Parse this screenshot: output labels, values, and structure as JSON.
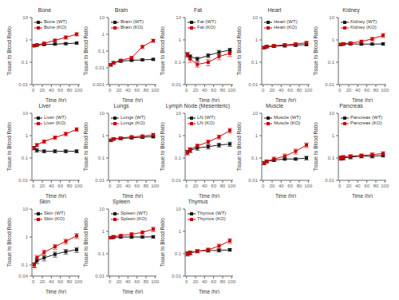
{
  "chart_data": [
    {
      "type": "line",
      "title": "Bone",
      "xlabel": "Time (hr)",
      "ylabel": "Tissue to Blood Ratio",
      "log": "y",
      "grid": false,
      "legend": "upper left",
      "x": [
        2,
        8,
        24,
        48,
        72,
        96
      ],
      "xlim": [
        -3,
        103
      ],
      "xticks": [
        0,
        20,
        40,
        60,
        80,
        100
      ],
      "ylim": [
        0.01,
        10
      ],
      "yticks": [
        0.01,
        0.1,
        1,
        10
      ],
      "series": [
        {
          "name": "Bone (WT)",
          "color": "#1a1a1a",
          "marker": "square",
          "line_style": "solid",
          "values": [
            0.55,
            0.58,
            0.62,
            0.65,
            0.68,
            0.72
          ],
          "error": [
            0.04,
            0.05,
            0.05,
            0.06,
            0.07,
            0.07
          ]
        },
        {
          "name": "Bone (KO)",
          "color": "#cc0000",
          "marker": "square",
          "line_style": "solid",
          "values": [
            0.55,
            0.6,
            0.7,
            0.95,
            1.3,
            1.8
          ],
          "error": [
            0.05,
            0.06,
            0.09,
            0.14,
            0.22,
            0.3
          ]
        }
      ]
    },
    {
      "type": "line",
      "title": "Brain",
      "xlabel": "Time (hr)",
      "ylabel": "Tissue to Blood Ratio",
      "log": "y",
      "grid": false,
      "legend": "upper left",
      "x": [
        2,
        8,
        24,
        48,
        72,
        96
      ],
      "xlim": [
        -3,
        103
      ],
      "xticks": [
        0,
        20,
        40,
        60,
        80,
        100
      ],
      "ylim": [
        0.001,
        10
      ],
      "yticks": [
        0.001,
        0.01,
        0.1,
        1,
        10
      ],
      "series": [
        {
          "name": "Brain (WT)",
          "color": "#1a1a1a",
          "marker": "square",
          "line_style": "solid",
          "values": [
            0.015,
            0.02,
            0.025,
            0.028,
            0.03,
            0.032
          ],
          "error": [
            0.002,
            0.003,
            0.003,
            0.003,
            0.004,
            0.004
          ]
        },
        {
          "name": "Brain (KO)",
          "color": "#cc0000",
          "marker": "square",
          "line_style": "solid",
          "values": [
            0.015,
            0.02,
            0.028,
            0.04,
            0.18,
            0.42
          ],
          "error": [
            0.002,
            0.003,
            0.004,
            0.006,
            0.04,
            0.09
          ]
        }
      ]
    },
    {
      "type": "line",
      "title": "Fat",
      "xlabel": "Time (hr)",
      "ylabel": "Tissue to Blood Ratio",
      "log": "y",
      "grid": false,
      "legend": "upper left",
      "x": [
        2,
        8,
        24,
        48,
        72,
        96
      ],
      "xlim": [
        -3,
        103
      ],
      "xticks": [
        0,
        20,
        40,
        60,
        80,
        100
      ],
      "ylim": [
        0.01,
        10
      ],
      "yticks": [
        0.01,
        0.1,
        1,
        10
      ],
      "series": [
        {
          "name": "Fat (WT)",
          "color": "#1a1a1a",
          "marker": "square",
          "line_style": "solid",
          "values": [
            0.22,
            0.18,
            0.14,
            0.2,
            0.28,
            0.35
          ],
          "error": [
            0.05,
            0.04,
            0.03,
            0.04,
            0.06,
            0.07
          ]
        },
        {
          "name": "Fat (KO)",
          "color": "#cc0000",
          "marker": "square",
          "line_style": "solid",
          "values": [
            0.22,
            0.14,
            0.08,
            0.1,
            0.18,
            0.25
          ],
          "error": [
            0.05,
            0.04,
            0.02,
            0.03,
            0.05,
            0.07
          ]
        }
      ]
    },
    {
      "type": "line",
      "title": "Heart",
      "xlabel": "Time (hr)",
      "ylabel": "Tissue to Blood Ratio",
      "log": "y",
      "grid": false,
      "legend": "upper left",
      "x": [
        2,
        8,
        24,
        48,
        72,
        96
      ],
      "xlim": [
        -3,
        103
      ],
      "xticks": [
        0,
        20,
        40,
        60,
        80,
        100
      ],
      "ylim": [
        0.01,
        10
      ],
      "yticks": [
        0.01,
        0.1,
        1,
        10
      ],
      "series": [
        {
          "name": "Heart (WT)",
          "color": "#1a1a1a",
          "marker": "square",
          "line_style": "solid",
          "values": [
            0.45,
            0.5,
            0.52,
            0.55,
            0.58,
            0.62
          ],
          "error": [
            0.05,
            0.06,
            0.06,
            0.07,
            0.07,
            0.08
          ]
        },
        {
          "name": "Heart (KO)",
          "color": "#cc0000",
          "marker": "square",
          "line_style": "solid",
          "values": [
            0.45,
            0.5,
            0.55,
            0.6,
            0.65,
            0.75
          ],
          "error": [
            0.05,
            0.06,
            0.07,
            0.08,
            0.09,
            0.1
          ]
        }
      ]
    },
    {
      "type": "line",
      "title": "Kidney",
      "xlabel": "Time (hr)",
      "ylabel": "Tissue to Blood Ratio",
      "log": "y",
      "grid": false,
      "legend": "upper left",
      "x": [
        2,
        8,
        24,
        48,
        72,
        96
      ],
      "xlim": [
        -3,
        103
      ],
      "xticks": [
        0,
        20,
        40,
        60,
        80,
        100
      ],
      "ylim": [
        0.01,
        10
      ],
      "yticks": [
        0.01,
        0.1,
        1,
        10
      ],
      "series": [
        {
          "name": "Kidney (WT)",
          "color": "#1a1a1a",
          "marker": "square",
          "line_style": "solid",
          "values": [
            0.62,
            0.65,
            0.66,
            0.65,
            0.65,
            0.66
          ],
          "error": [
            0.06,
            0.07,
            0.07,
            0.07,
            0.07,
            0.07
          ]
        },
        {
          "name": "Kidney (KO)",
          "color": "#cc0000",
          "marker": "square",
          "line_style": "solid",
          "values": [
            0.62,
            0.67,
            0.72,
            0.85,
            1.1,
            1.6
          ],
          "error": [
            0.07,
            0.08,
            0.1,
            0.13,
            0.2,
            0.32
          ]
        }
      ]
    },
    {
      "type": "line",
      "title": "Liver",
      "xlabel": "Time (hr)",
      "ylabel": "Tissue to Blood Ratio",
      "log": "y",
      "grid": false,
      "legend": "upper left",
      "x": [
        2,
        8,
        24,
        48,
        72,
        96
      ],
      "xlim": [
        -3,
        103
      ],
      "xticks": [
        0,
        20,
        40,
        60,
        80,
        100
      ],
      "ylim": [
        0.01,
        10
      ],
      "yticks": [
        0.01,
        0.1,
        1,
        10
      ],
      "series": [
        {
          "name": "Liver (WT)",
          "color": "#1a1a1a",
          "marker": "square",
          "line_style": "solid",
          "values": [
            0.28,
            0.22,
            0.2,
            0.2,
            0.2,
            0.2
          ],
          "error": [
            0.04,
            0.04,
            0.03,
            0.03,
            0.03,
            0.03
          ]
        },
        {
          "name": "Liver (KO)",
          "color": "#cc0000",
          "marker": "square",
          "line_style": "solid",
          "values": [
            0.28,
            0.38,
            0.55,
            0.82,
            1.2,
            1.9
          ],
          "error": [
            0.05,
            0.06,
            0.09,
            0.14,
            0.22,
            0.35
          ]
        }
      ]
    },
    {
      "type": "line",
      "title": "Lungs",
      "xlabel": "Time (hr)",
      "ylabel": "Tissue to Blood Ratio",
      "log": "y",
      "grid": false,
      "legend": "upper left",
      "x": [
        2,
        8,
        24,
        48,
        72,
        96
      ],
      "xlim": [
        -3,
        103
      ],
      "xticks": [
        0,
        20,
        40,
        60,
        80,
        100
      ],
      "ylim": [
        0.01,
        10
      ],
      "yticks": [
        0.01,
        0.1,
        1,
        10
      ],
      "series": [
        {
          "name": "Lungs (WT)",
          "color": "#1a1a1a",
          "marker": "square",
          "line_style": "solid",
          "values": [
            0.62,
            0.7,
            0.75,
            0.8,
            0.85,
            0.9
          ],
          "error": [
            0.07,
            0.08,
            0.09,
            0.09,
            0.1,
            0.1
          ]
        },
        {
          "name": "Lungs (KO)",
          "color": "#cc0000",
          "marker": "square",
          "line_style": "solid",
          "values": [
            0.62,
            0.72,
            0.78,
            0.88,
            0.95,
            1.1
          ],
          "error": [
            0.07,
            0.09,
            0.1,
            0.11,
            0.12,
            0.16
          ]
        }
      ]
    },
    {
      "type": "line",
      "title": "Lymph Node (Mesenteric)",
      "xlabel": "Time (hr)",
      "ylabel": "Tissue to Blood Ratio",
      "log": "y",
      "grid": false,
      "legend": "upper left",
      "x": [
        2,
        8,
        24,
        48,
        72,
        96
      ],
      "xlim": [
        -3,
        103
      ],
      "xticks": [
        0,
        20,
        40,
        60,
        80,
        100
      ],
      "ylim": [
        0.01,
        10
      ],
      "yticks": [
        0.01,
        0.1,
        1,
        10
      ],
      "series": [
        {
          "name": "LN (WT)",
          "color": "#1a1a1a",
          "marker": "square",
          "line_style": "solid",
          "values": [
            0.18,
            0.22,
            0.28,
            0.32,
            0.38,
            0.42
          ],
          "error": [
            0.04,
            0.05,
            0.06,
            0.07,
            0.08,
            0.09
          ]
        },
        {
          "name": "LN (KO)",
          "color": "#cc0000",
          "marker": "square",
          "line_style": "solid",
          "values": [
            0.18,
            0.24,
            0.35,
            0.52,
            0.88,
            1.7
          ],
          "error": [
            0.04,
            0.05,
            0.07,
            0.12,
            0.18,
            0.4
          ]
        }
      ]
    },
    {
      "type": "line",
      "title": "Muscle",
      "xlabel": "Time (hr)",
      "ylabel": "Tissue to Blood Ratio",
      "log": "y",
      "grid": false,
      "legend": "upper left",
      "x": [
        2,
        8,
        24,
        48,
        72,
        96
      ],
      "xlim": [
        -3,
        103
      ],
      "xticks": [
        0,
        20,
        40,
        60,
        80,
        100
      ],
      "ylim": [
        0.01,
        10
      ],
      "yticks": [
        0.01,
        0.1,
        1,
        10
      ],
      "series": [
        {
          "name": "Muscle (WT)",
          "color": "#1a1a1a",
          "marker": "square",
          "line_style": "solid",
          "values": [
            0.06,
            0.07,
            0.08,
            0.09,
            0.09,
            0.1
          ],
          "error": [
            0.01,
            0.01,
            0.01,
            0.01,
            0.01,
            0.02
          ]
        },
        {
          "name": "Muscle (KO)",
          "color": "#cc0000",
          "marker": "square",
          "line_style": "solid",
          "values": [
            0.06,
            0.07,
            0.09,
            0.12,
            0.2,
            0.38
          ],
          "error": [
            0.01,
            0.01,
            0.02,
            0.03,
            0.05,
            0.09
          ]
        }
      ]
    },
    {
      "type": "line",
      "title": "Pancreas",
      "xlabel": "Time (hr)",
      "ylabel": "Tissue to Blood Ratio",
      "log": "y",
      "grid": false,
      "legend": "upper left",
      "x": [
        2,
        8,
        24,
        48,
        72,
        96
      ],
      "xlim": [
        -3,
        103
      ],
      "xticks": [
        0,
        20,
        40,
        60,
        80,
        100
      ],
      "ylim": [
        0.01,
        10
      ],
      "yticks": [
        0.01,
        0.1,
        1,
        10
      ],
      "series": [
        {
          "name": "Pancreas (WT)",
          "color": "#1a1a1a",
          "marker": "square",
          "line_style": "solid",
          "values": [
            0.1,
            0.1,
            0.11,
            0.12,
            0.12,
            0.13
          ],
          "error": [
            0.02,
            0.02,
            0.02,
            0.02,
            0.02,
            0.02
          ]
        },
        {
          "name": "Pancreas (KO)",
          "color": "#cc0000",
          "marker": "square",
          "line_style": "solid",
          "values": [
            0.1,
            0.11,
            0.12,
            0.13,
            0.14,
            0.16
          ],
          "error": [
            0.02,
            0.02,
            0.02,
            0.02,
            0.03,
            0.03
          ]
        }
      ]
    },
    {
      "type": "line",
      "title": "Skin",
      "xlabel": "Time (hr)",
      "ylabel": "Tissue to Blood Ratio",
      "log": "y",
      "grid": false,
      "legend": "upper left",
      "x": [
        2,
        8,
        24,
        48,
        72,
        96
      ],
      "xlim": [
        -3,
        103
      ],
      "xticks": [
        0,
        20,
        40,
        60,
        80,
        100
      ],
      "ylim": [
        0.04,
        10
      ],
      "yticks": [
        0.04,
        0.1,
        1,
        10
      ],
      "series": [
        {
          "name": "Skin (WT)",
          "color": "#1a1a1a",
          "marker": "square",
          "line_style": "solid",
          "values": [
            0.1,
            0.14,
            0.18,
            0.24,
            0.3,
            0.35
          ],
          "error": [
            0.02,
            0.03,
            0.04,
            0.05,
            0.06,
            0.07
          ]
        },
        {
          "name": "Skin (KO)",
          "color": "#cc0000",
          "marker": "square",
          "line_style": "solid",
          "values": [
            0.1,
            0.18,
            0.28,
            0.45,
            0.7,
            1.1
          ],
          "error": [
            0.02,
            0.04,
            0.06,
            0.09,
            0.14,
            0.22
          ]
        }
      ]
    },
    {
      "type": "line",
      "title": "Spleen",
      "xlabel": "Time (hr)",
      "ylabel": "Tissue to Blood Ratio",
      "log": "y",
      "grid": false,
      "legend": "upper left",
      "x": [
        2,
        8,
        24,
        48,
        72,
        96
      ],
      "xlim": [
        -3,
        103
      ],
      "xticks": [
        0,
        20,
        40,
        60,
        80,
        100
      ],
      "ylim": [
        0.01,
        10
      ],
      "yticks": [
        0.01,
        0.1,
        1,
        10
      ],
      "series": [
        {
          "name": "Spleen (WT)",
          "color": "#1a1a1a",
          "marker": "square",
          "line_style": "solid",
          "values": [
            0.52,
            0.55,
            0.56,
            0.56,
            0.56,
            0.57
          ],
          "error": [
            0.06,
            0.07,
            0.07,
            0.07,
            0.07,
            0.07
          ]
        },
        {
          "name": "Spleen (KO)",
          "color": "#cc0000",
          "marker": "square",
          "line_style": "solid",
          "values": [
            0.52,
            0.58,
            0.65,
            0.75,
            0.9,
            1.25
          ],
          "error": [
            0.06,
            0.07,
            0.09,
            0.11,
            0.15,
            0.28
          ]
        }
      ]
    },
    {
      "type": "line",
      "title": "Thymus",
      "xlabel": "Time (hr)",
      "ylabel": "Tissue to Blood Ratio",
      "log": "y",
      "grid": false,
      "legend": "upper left",
      "x": [
        2,
        8,
        24,
        48,
        72,
        96
      ],
      "xlim": [
        -3,
        103
      ],
      "xticks": [
        0,
        20,
        40,
        60,
        80,
        100
      ],
      "ylim": [
        0.01,
        10
      ],
      "yticks": [
        0.01,
        0.1,
        1,
        10
      ],
      "series": [
        {
          "name": "Thymus (WT)",
          "color": "#1a1a1a",
          "marker": "square",
          "line_style": "solid",
          "values": [
            0.1,
            0.11,
            0.13,
            0.14,
            0.14,
            0.15
          ],
          "error": [
            0.02,
            0.02,
            0.02,
            0.02,
            0.02,
            0.02
          ]
        },
        {
          "name": "Thymus (KO)",
          "color": "#cc0000",
          "marker": "square",
          "line_style": "solid",
          "values": [
            0.1,
            0.11,
            0.13,
            0.15,
            0.22,
            0.38
          ],
          "error": [
            0.02,
            0.02,
            0.02,
            0.03,
            0.05,
            0.09
          ]
        }
      ]
    }
  ]
}
